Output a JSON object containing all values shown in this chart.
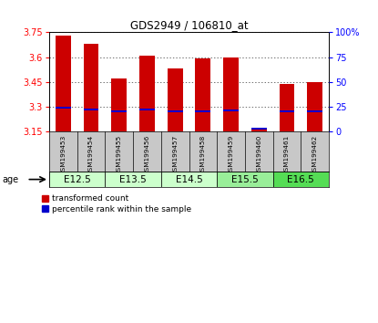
{
  "title": "GDS2949 / 106810_at",
  "samples": [
    "GSM199453",
    "GSM199454",
    "GSM199455",
    "GSM199456",
    "GSM199457",
    "GSM199458",
    "GSM199459",
    "GSM199460",
    "GSM199461",
    "GSM199462"
  ],
  "red_values": [
    3.73,
    3.68,
    3.47,
    3.61,
    3.53,
    3.595,
    3.6,
    3.175,
    3.44,
    3.45
  ],
  "blue_values": [
    3.293,
    3.286,
    3.275,
    3.283,
    3.272,
    3.274,
    3.28,
    3.17,
    3.272,
    3.272
  ],
  "base": 3.15,
  "ylim_left": [
    3.15,
    3.75
  ],
  "ylim_right": [
    0,
    100
  ],
  "yticks_left": [
    3.15,
    3.3,
    3.45,
    3.6,
    3.75
  ],
  "yticks_right": [
    0,
    25,
    50,
    75,
    100
  ],
  "ytick_labels_left": [
    "3.15",
    "3.3",
    "3.45",
    "3.6",
    "3.75"
  ],
  "ytick_labels_right": [
    "0",
    "25",
    "50",
    "75",
    "100%"
  ],
  "age_groups": [
    {
      "label": "E12.5",
      "start": 0,
      "end": 2,
      "color": "#ccffcc"
    },
    {
      "label": "E13.5",
      "start": 2,
      "end": 4,
      "color": "#ccffcc"
    },
    {
      "label": "E14.5",
      "start": 4,
      "end": 6,
      "color": "#ccffcc"
    },
    {
      "label": "E15.5",
      "start": 6,
      "end": 8,
      "color": "#99ee99"
    },
    {
      "label": "E16.5",
      "start": 8,
      "end": 10,
      "color": "#55dd55"
    }
  ],
  "red_color": "#cc0000",
  "blue_color": "#0000cc",
  "bar_width": 0.55,
  "grid_color": "#000000",
  "bg_color": "#ffffff",
  "plot_bg": "#ffffff",
  "sample_bg": "#c8c8c8"
}
